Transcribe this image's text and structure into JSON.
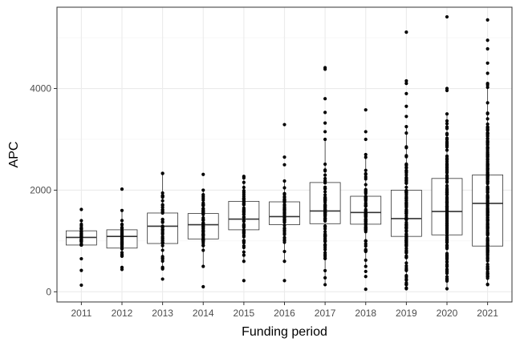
{
  "chart_data": {
    "type": "box",
    "title": "",
    "xlabel": "Funding period",
    "ylabel": "APC",
    "ylim": [
      -200,
      5600
    ],
    "yticks": [
      0,
      2000,
      4000
    ],
    "grid": true,
    "legend": "none",
    "categories": [
      "2011",
      "2012",
      "2013",
      "2014",
      "2015",
      "2016",
      "2017",
      "2018",
      "2019",
      "2020",
      "2021"
    ],
    "boxes": [
      {
        "category": "2011",
        "q1": 920,
        "median": 1070,
        "q3": 1200,
        "whisker_low": 920,
        "whisker_high": 1400,
        "n_points": 30,
        "outliers": [
          130,
          420,
          650,
          1620
        ]
      },
      {
        "category": "2012",
        "q1": 860,
        "median": 1090,
        "q3": 1220,
        "whisker_low": 700,
        "whisker_high": 1600,
        "n_points": 40,
        "outliers": [
          440,
          480,
          2020
        ]
      },
      {
        "category": "2013",
        "q1": 950,
        "median": 1290,
        "q3": 1550,
        "whisker_low": 450,
        "whisker_high": 2330,
        "n_points": 45,
        "outliers": [
          250,
          2330
        ]
      },
      {
        "category": "2014",
        "q1": 1040,
        "median": 1320,
        "q3": 1540,
        "whisker_low": 500,
        "whisker_high": 2000,
        "n_points": 50,
        "outliers": [
          100,
          2310
        ]
      },
      {
        "category": "2015",
        "q1": 1220,
        "median": 1430,
        "q3": 1780,
        "whisker_low": 600,
        "whisker_high": 2270,
        "n_points": 50,
        "outliers": [
          220
        ]
      },
      {
        "category": "2016",
        "q1": 1320,
        "median": 1480,
        "q3": 1770,
        "whisker_low": 600,
        "whisker_high": 2180,
        "n_points": 60,
        "outliers": [
          220,
          2500,
          2650,
          3290
        ]
      },
      {
        "category": "2017",
        "q1": 1340,
        "median": 1590,
        "q3": 2150,
        "whisker_low": 140,
        "whisker_high": 3000,
        "n_points": 80,
        "outliers": [
          3150,
          3320,
          3530,
          3800,
          4380,
          4410
        ]
      },
      {
        "category": "2018",
        "q1": 1330,
        "median": 1560,
        "q3": 1880,
        "whisker_low": 500,
        "whisker_high": 2700,
        "n_points": 80,
        "outliers": [
          50,
          300,
          400,
          3000,
          3150,
          3580
        ]
      },
      {
        "category": "2019",
        "q1": 1090,
        "median": 1440,
        "q3": 2000,
        "whisker_low": 60,
        "whisker_high": 3250,
        "n_points": 130,
        "outliers": [
          3450,
          3650,
          3900,
          4100,
          4150,
          5110
        ]
      },
      {
        "category": "2020",
        "q1": 1120,
        "median": 1580,
        "q3": 2230,
        "whisker_low": 60,
        "whisker_high": 3500,
        "n_points": 190,
        "outliers": [
          3960,
          4000,
          5410
        ]
      },
      {
        "category": "2021",
        "q1": 900,
        "median": 1740,
        "q3": 2300,
        "whisker_low": 140,
        "whisker_high": 4100,
        "n_points": 220,
        "outliers": [
          4300,
          4500,
          4780,
          4950,
          5350
        ]
      }
    ]
  }
}
